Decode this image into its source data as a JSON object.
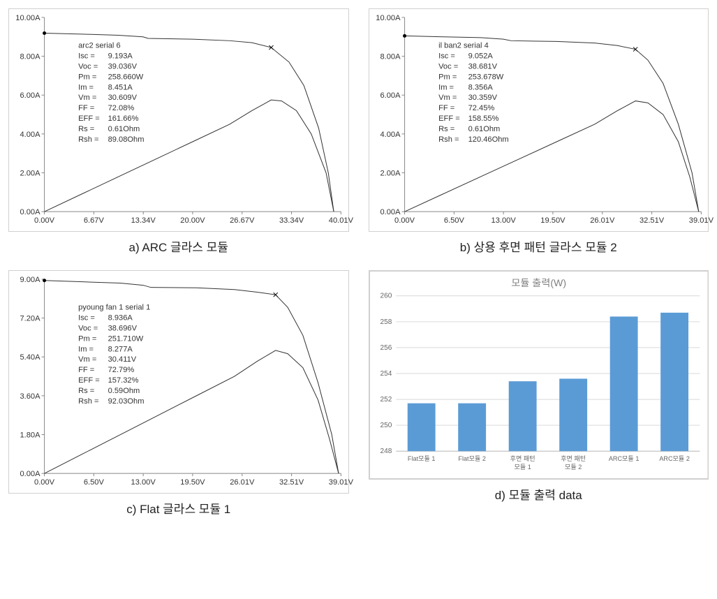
{
  "layout": {
    "cols": 2,
    "rows": 2,
    "panel_aspect": "1.5:1"
  },
  "iv_common": {
    "line_color": "#333333",
    "line_width": 1,
    "axis_color": "#888888",
    "tick_color": "#888888",
    "grid_on": false,
    "label_fontsize": 11,
    "param_fontsize": 11,
    "background_color": "#ffffff",
    "border_color": "#d0d0d0",
    "marker_style": "x",
    "marker_size": 6
  },
  "panels": {
    "a": {
      "caption": "a) ARC 글라스 모듈",
      "header": "arc2       serial 6",
      "params": [
        [
          "Isc =",
          "9.193A"
        ],
        [
          "Voc =",
          "39.036V"
        ],
        [
          "Pm =",
          "258.660W"
        ],
        [
          "Im =",
          "8.451A"
        ],
        [
          "Vm =",
          "30.609V"
        ],
        [
          "FF =",
          "72.08%"
        ],
        [
          "EFF =",
          "161.66%"
        ],
        [
          "Rs =",
          "0.61Ohm"
        ],
        [
          "Rsh =",
          "89.08Ohm"
        ]
      ],
      "ylim": [
        0,
        10
      ],
      "ytick_labels": [
        "0.00A",
        "2.00A",
        "4.00A",
        "6.00A",
        "8.00A",
        "10.00A"
      ],
      "xlim": [
        0,
        40.01
      ],
      "xtick_positions": [
        0,
        6.67,
        13.34,
        20.0,
        26.67,
        33.34,
        40.01
      ],
      "xtick_labels": [
        "0.00V",
        "6.67V",
        "13.34V",
        "20.00V",
        "26.67V",
        "33.34V",
        "40.01V"
      ],
      "iv_curve": [
        [
          0,
          9.19
        ],
        [
          5,
          9.14
        ],
        [
          10,
          9.08
        ],
        [
          13.3,
          9.0
        ],
        [
          14,
          8.92
        ],
        [
          20,
          8.88
        ],
        [
          25,
          8.8
        ],
        [
          28,
          8.7
        ],
        [
          30.6,
          8.45
        ],
        [
          33,
          7.7
        ],
        [
          35,
          6.5
        ],
        [
          37,
          4.3
        ],
        [
          38.3,
          2.0
        ],
        [
          39.04,
          0
        ]
      ],
      "marker_iv": [
        30.6,
        8.45
      ],
      "power_curve": [
        [
          0,
          0
        ],
        [
          5,
          0.9
        ],
        [
          10,
          1.8
        ],
        [
          15,
          2.7
        ],
        [
          20,
          3.6
        ],
        [
          25,
          4.5
        ],
        [
          28,
          5.2
        ],
        [
          30.6,
          5.75
        ],
        [
          32,
          5.7
        ],
        [
          34,
          5.2
        ],
        [
          36,
          4.0
        ],
        [
          38,
          2.0
        ],
        [
          39.04,
          0
        ]
      ],
      "power_scale_note": "power drawn on same A axis, peak≈5.8"
    },
    "b": {
      "caption": "b) 상용 후면 패턴 글라스 모듈 2",
      "header": "il ban2      serial 4",
      "params": [
        [
          "Isc =",
          "9.052A"
        ],
        [
          "Voc =",
          "38.681V"
        ],
        [
          "Pm =",
          "253.678W"
        ],
        [
          "Im =",
          "8.356A"
        ],
        [
          "Vm =",
          "30.359V"
        ],
        [
          "FF =",
          "72.45%"
        ],
        [
          "EFF =",
          "158.55%"
        ],
        [
          "Rs =",
          "0.61Ohm"
        ],
        [
          "Rsh =",
          "120.46Ohm"
        ]
      ],
      "ylim": [
        0,
        10
      ],
      "ytick_labels": [
        "0.00A",
        "2.00A",
        "4.00A",
        "6.00A",
        "8.00A",
        "10.00A"
      ],
      "xlim": [
        0,
        39.01
      ],
      "xtick_positions": [
        0,
        6.5,
        13.0,
        19.5,
        26.01,
        32.51,
        39.01
      ],
      "xtick_labels": [
        "0.00V",
        "6.50V",
        "13.00V",
        "19.50V",
        "26.01V",
        "32.51V",
        "39.01V"
      ],
      "iv_curve": [
        [
          0,
          9.05
        ],
        [
          5,
          9.0
        ],
        [
          10,
          8.96
        ],
        [
          13,
          8.88
        ],
        [
          14,
          8.8
        ],
        [
          20,
          8.76
        ],
        [
          25,
          8.68
        ],
        [
          28,
          8.55
        ],
        [
          30.36,
          8.36
        ],
        [
          32,
          7.8
        ],
        [
          34,
          6.6
        ],
        [
          36,
          4.5
        ],
        [
          37.8,
          2.0
        ],
        [
          38.68,
          0
        ]
      ],
      "marker_iv": [
        30.36,
        8.36
      ],
      "power_curve": [
        [
          0,
          0
        ],
        [
          5,
          0.9
        ],
        [
          10,
          1.8
        ],
        [
          15,
          2.7
        ],
        [
          20,
          3.6
        ],
        [
          25,
          4.5
        ],
        [
          28,
          5.2
        ],
        [
          30.36,
          5.7
        ],
        [
          32,
          5.6
        ],
        [
          34,
          5.0
        ],
        [
          36,
          3.6
        ],
        [
          37.5,
          1.8
        ],
        [
          38.68,
          0
        ]
      ]
    },
    "c": {
      "caption": "c) Flat 글라스 모듈 1",
      "header": "pyoung fan 1      serial 1",
      "params": [
        [
          "Isc =",
          "8.936A"
        ],
        [
          "Voc =",
          "38.696V"
        ],
        [
          "Pm =",
          "251.710W"
        ],
        [
          "Im =",
          "8.277A"
        ],
        [
          "Vm =",
          "30.411V"
        ],
        [
          "FF =",
          "72.79%"
        ],
        [
          "EFF =",
          "157.32%"
        ],
        [
          "Rs =",
          "0.59Ohm"
        ],
        [
          "Rsh =",
          "92.03Ohm"
        ]
      ],
      "ylim": [
        0,
        9
      ],
      "ytick_labels": [
        "0.00A",
        "1.80A",
        "3.60A",
        "5.40A",
        "7.20A",
        "9.00A"
      ],
      "xlim": [
        0,
        39.01
      ],
      "xtick_positions": [
        0,
        6.5,
        13.0,
        19.5,
        26.01,
        32.51,
        39.01
      ],
      "xtick_labels": [
        "0.00V",
        "6.50V",
        "13.00V",
        "19.50V",
        "26.01V",
        "32.51V",
        "39.01V"
      ],
      "iv_curve": [
        [
          0,
          8.94
        ],
        [
          5,
          8.88
        ],
        [
          10,
          8.82
        ],
        [
          13,
          8.72
        ],
        [
          14,
          8.62
        ],
        [
          20,
          8.6
        ],
        [
          25,
          8.52
        ],
        [
          28,
          8.4
        ],
        [
          30.41,
          8.28
        ],
        [
          32,
          7.7
        ],
        [
          34,
          6.4
        ],
        [
          36,
          4.2
        ],
        [
          37.8,
          1.8
        ],
        [
          38.7,
          0
        ]
      ],
      "marker_iv": [
        30.41,
        8.28
      ],
      "power_curve": [
        [
          0,
          0
        ],
        [
          5,
          0.9
        ],
        [
          10,
          1.8
        ],
        [
          15,
          2.7
        ],
        [
          20,
          3.6
        ],
        [
          25,
          4.5
        ],
        [
          28,
          5.2
        ],
        [
          30.41,
          5.7
        ],
        [
          32,
          5.55
        ],
        [
          34,
          4.9
        ],
        [
          36,
          3.4
        ],
        [
          37.5,
          1.6
        ],
        [
          38.7,
          0
        ]
      ]
    },
    "d": {
      "caption": "d) 모듈 출력 data",
      "type": "bar",
      "title": "모듈 출력(W)",
      "title_fontsize": 14,
      "title_color": "#7f7f7f",
      "categories": [
        "Flat모듈 1",
        "Flat모듈 2",
        "후면 패턴 모듈 1",
        "후면 패턴 모듈 2",
        "ARC모듈 1",
        "ARC모듈 2"
      ],
      "values": [
        251.7,
        251.7,
        253.4,
        253.6,
        258.4,
        258.7
      ],
      "bar_color": "#5b9bd5",
      "ylim": [
        248,
        260
      ],
      "ytick_step": 2,
      "ytick_labels": [
        "248",
        "250",
        "252",
        "254",
        "256",
        "258",
        "260"
      ],
      "grid_color": "#d9d9d9",
      "axis_color": "#bfbfbf",
      "bar_width": 0.55,
      "background_color": "#ffffff",
      "border_color": "#d0d0d0",
      "label_fontsize": 10
    }
  }
}
